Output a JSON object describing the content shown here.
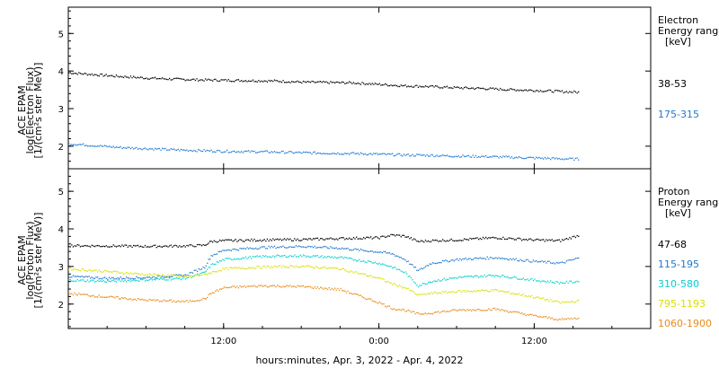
{
  "chart_data": [
    {
      "type": "scatter",
      "panel": "electron",
      "ylabel_lines": [
        "ACE EPAM",
        "log(Electron Flux)",
        "[1/(cm²s ster MeV)]"
      ],
      "ylim": [
        1.4,
        5.7
      ],
      "yticks": [
        2,
        3,
        4,
        5
      ],
      "legend_title_lines": [
        "Electron",
        "Energy range",
        "[keV]"
      ],
      "series": [
        {
          "name": "38-53",
          "color": "#000000",
          "x": [
            0,
            2,
            4,
            6,
            8,
            10,
            12,
            14,
            16,
            18,
            20,
            22,
            24,
            26,
            28,
            30,
            32,
            34,
            36,
            38,
            39.5
          ],
          "values": [
            3.97,
            3.92,
            3.87,
            3.83,
            3.8,
            3.78,
            3.77,
            3.76,
            3.75,
            3.72,
            3.71,
            3.7,
            3.66,
            3.62,
            3.6,
            3.57,
            3.55,
            3.52,
            3.5,
            3.47,
            3.45
          ]
        },
        {
          "name": "175-315",
          "color": "#1f78d0",
          "x": [
            0,
            2,
            4,
            6,
            8,
            10,
            12,
            14,
            16,
            18,
            20,
            22,
            24,
            26,
            28,
            30,
            32,
            34,
            36,
            38,
            39.5
          ],
          "values": [
            2.08,
            2.03,
            1.98,
            1.95,
            1.92,
            1.9,
            1.88,
            1.87,
            1.86,
            1.84,
            1.83,
            1.82,
            1.8,
            1.78,
            1.77,
            1.75,
            1.74,
            1.72,
            1.7,
            1.68,
            1.67
          ]
        }
      ]
    },
    {
      "type": "scatter",
      "panel": "proton",
      "ylabel_lines": [
        "ACE EPAM",
        "log(Proton Flux)",
        "[1/(cm²s ster MeV)]"
      ],
      "ylim": [
        1.35,
        5.6
      ],
      "yticks": [
        2,
        3,
        4,
        5
      ],
      "legend_title_lines": [
        "Proton",
        "Energy range",
        "[keV]"
      ],
      "series": [
        {
          "name": "47-68",
          "color": "#000000",
          "x": [
            0,
            3,
            6,
            9,
            10.5,
            11,
            12,
            15,
            18,
            21,
            24,
            25,
            26,
            27,
            28,
            30,
            33,
            36,
            38,
            39.5
          ],
          "values": [
            3.57,
            3.56,
            3.55,
            3.56,
            3.58,
            3.68,
            3.7,
            3.72,
            3.73,
            3.76,
            3.78,
            3.85,
            3.82,
            3.68,
            3.7,
            3.72,
            3.78,
            3.72,
            3.7,
            3.85
          ]
        },
        {
          "name": "115-195",
          "color": "#1f78d0",
          "x": [
            0,
            3,
            6,
            9,
            10.5,
            11,
            12,
            15,
            18,
            21,
            24,
            25,
            26,
            27,
            28,
            30,
            33,
            36,
            38,
            39.5
          ],
          "values": [
            2.75,
            2.7,
            2.72,
            2.78,
            3.0,
            3.3,
            3.45,
            3.52,
            3.55,
            3.5,
            3.4,
            3.35,
            3.2,
            2.9,
            3.1,
            3.2,
            3.25,
            3.15,
            3.1,
            3.25
          ]
        },
        {
          "name": "310-580",
          "color": "#00d0d0",
          "x": [
            0,
            3,
            6,
            9,
            10.5,
            11,
            12,
            15,
            18,
            21,
            24,
            25,
            26,
            27,
            28,
            30,
            33,
            36,
            38,
            39.5
          ],
          "values": [
            2.65,
            2.62,
            2.66,
            2.7,
            2.85,
            3.05,
            3.2,
            3.28,
            3.3,
            3.25,
            3.1,
            3.0,
            2.85,
            2.5,
            2.62,
            2.72,
            2.78,
            2.65,
            2.58,
            2.62
          ]
        },
        {
          "name": "795-1193",
          "color": "#d8e000",
          "x": [
            0,
            3,
            6,
            9,
            10.5,
            11,
            12,
            15,
            18,
            21,
            24,
            25,
            26,
            27,
            28,
            30,
            33,
            36,
            38,
            39.5
          ],
          "values": [
            2.95,
            2.88,
            2.8,
            2.75,
            2.8,
            2.85,
            2.95,
            3.0,
            3.02,
            2.95,
            2.7,
            2.55,
            2.45,
            2.25,
            2.3,
            2.35,
            2.38,
            2.2,
            2.05,
            2.1
          ]
        },
        {
          "name": "1060-1900",
          "color": "#e88a1a",
          "x": [
            0,
            3,
            6,
            9,
            10.5,
            11,
            12,
            15,
            18,
            21,
            24,
            25,
            26,
            27,
            28,
            30,
            33,
            36,
            38,
            39.5
          ],
          "values": [
            2.3,
            2.2,
            2.12,
            2.08,
            2.15,
            2.3,
            2.45,
            2.5,
            2.48,
            2.4,
            2.05,
            1.9,
            1.85,
            1.75,
            1.78,
            1.85,
            1.88,
            1.7,
            1.6,
            1.65
          ]
        }
      ]
    }
  ],
  "x_axis": {
    "tick_labels": [
      "12:00",
      "0:00",
      "12:00"
    ],
    "tick_hours": [
      12,
      24,
      36
    ],
    "range_hours": [
      0,
      45
    ],
    "xlabel": "hours:minutes, Apr.  3, 2022 - Apr.  4, 2022"
  }
}
